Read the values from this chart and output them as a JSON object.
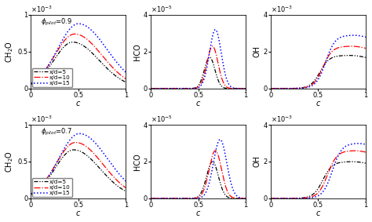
{
  "phi_values": [
    0.9,
    0.7
  ],
  "line_colors": [
    "black",
    "red",
    "blue"
  ],
  "legend_labels": [
    "x/d=5",
    "x/d=10",
    "x/d=15"
  ],
  "xlabel": "c",
  "ylabels_col": [
    "CH$_2$O",
    "HCO",
    "OH"
  ],
  "ch2o_ylim": [
    0,
    0.001
  ],
  "hco_ylim": [
    0,
    4e-05
  ],
  "oh_ylim": [
    0,
    0.004
  ],
  "ch2o_yticks": [
    0,
    0.0005,
    0.001
  ],
  "hco_yticks": [
    0,
    2e-05,
    4e-05
  ],
  "oh_yticks": [
    0,
    0.002,
    0.004
  ],
  "ch2o_yticklabels": [
    "0",
    "0.5",
    "1"
  ],
  "hco_yticklabels": [
    "0",
    "2",
    "4"
  ],
  "oh_yticklabels": [
    "0",
    "2",
    "4"
  ],
  "xticks": [
    0,
    0.5,
    1
  ],
  "xticklabels": [
    "0",
    "0.5",
    "1"
  ],
  "scale_labels": [
    "x10^-3",
    "x10^-5",
    "x10^-3"
  ]
}
